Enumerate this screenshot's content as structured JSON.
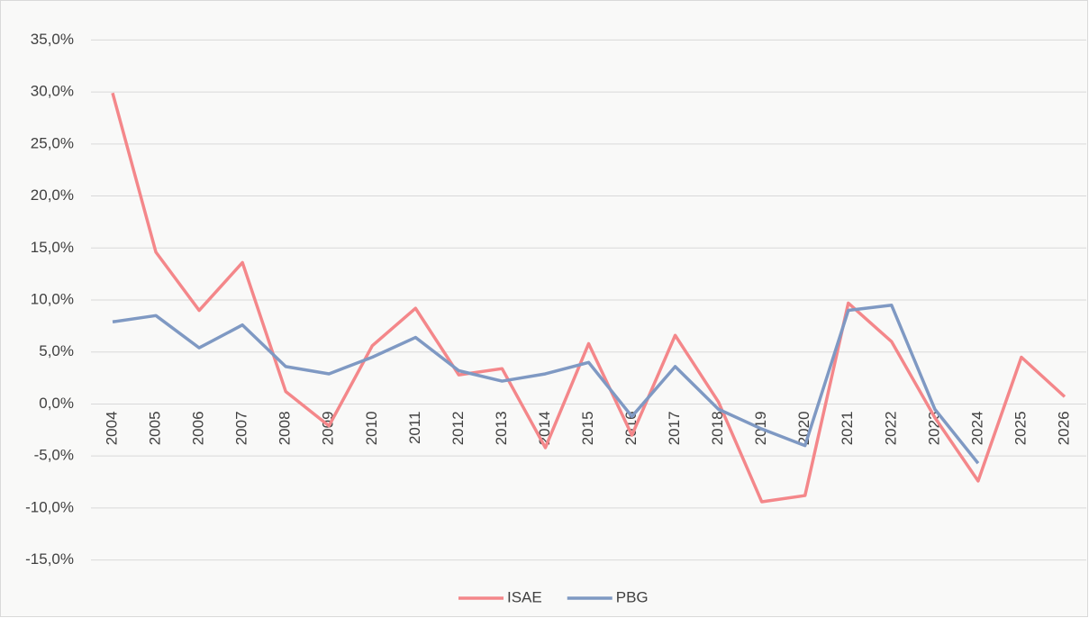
{
  "chart_data": {
    "type": "line",
    "categories": [
      "2004",
      "2005",
      "2006",
      "2007",
      "2008",
      "2009",
      "2010",
      "2011",
      "2012",
      "2013",
      "2014",
      "2015",
      "2016",
      "2017",
      "2018",
      "2019",
      "2020",
      "2021",
      "2022",
      "2023",
      "2024",
      "2025",
      "2026"
    ],
    "series": [
      {
        "name": "ISAE",
        "color": "#f4878a",
        "values": [
          29.9,
          14.6,
          9.0,
          13.6,
          1.2,
          -2.1,
          5.6,
          9.2,
          2.8,
          3.4,
          -4.2,
          5.8,
          -3.0,
          6.6,
          0.2,
          -9.4,
          -8.8,
          9.7,
          6.0,
          -1.3,
          -7.4,
          4.5,
          0.7
        ]
      },
      {
        "name": "PBG",
        "color": "#7f99c3",
        "values": [
          7.9,
          8.5,
          5.4,
          7.6,
          3.6,
          2.9,
          4.5,
          6.4,
          3.2,
          2.2,
          2.9,
          4.0,
          -1.2,
          3.6,
          -0.5,
          -2.4,
          -4.0,
          9.0,
          9.5,
          -0.5,
          -5.7,
          null,
          null
        ]
      }
    ],
    "ylim": [
      -17.5,
      37.5
    ],
    "yticks": [
      {
        "value": -15,
        "label": "-15,0%"
      },
      {
        "value": -10,
        "label": "-10,0%"
      },
      {
        "value": -5,
        "label": "-5,0%"
      },
      {
        "value": 0,
        "label": "0,0%"
      },
      {
        "value": 5,
        "label": "5,0%"
      },
      {
        "value": 10,
        "label": "10,0%"
      },
      {
        "value": 15,
        "label": "15,0%"
      },
      {
        "value": 20,
        "label": "20,0%"
      },
      {
        "value": 25,
        "label": "25,0%"
      },
      {
        "value": 30,
        "label": "30,0%"
      },
      {
        "value": 35,
        "label": "35,0%"
      }
    ],
    "grid": true,
    "legend": "bottom"
  }
}
